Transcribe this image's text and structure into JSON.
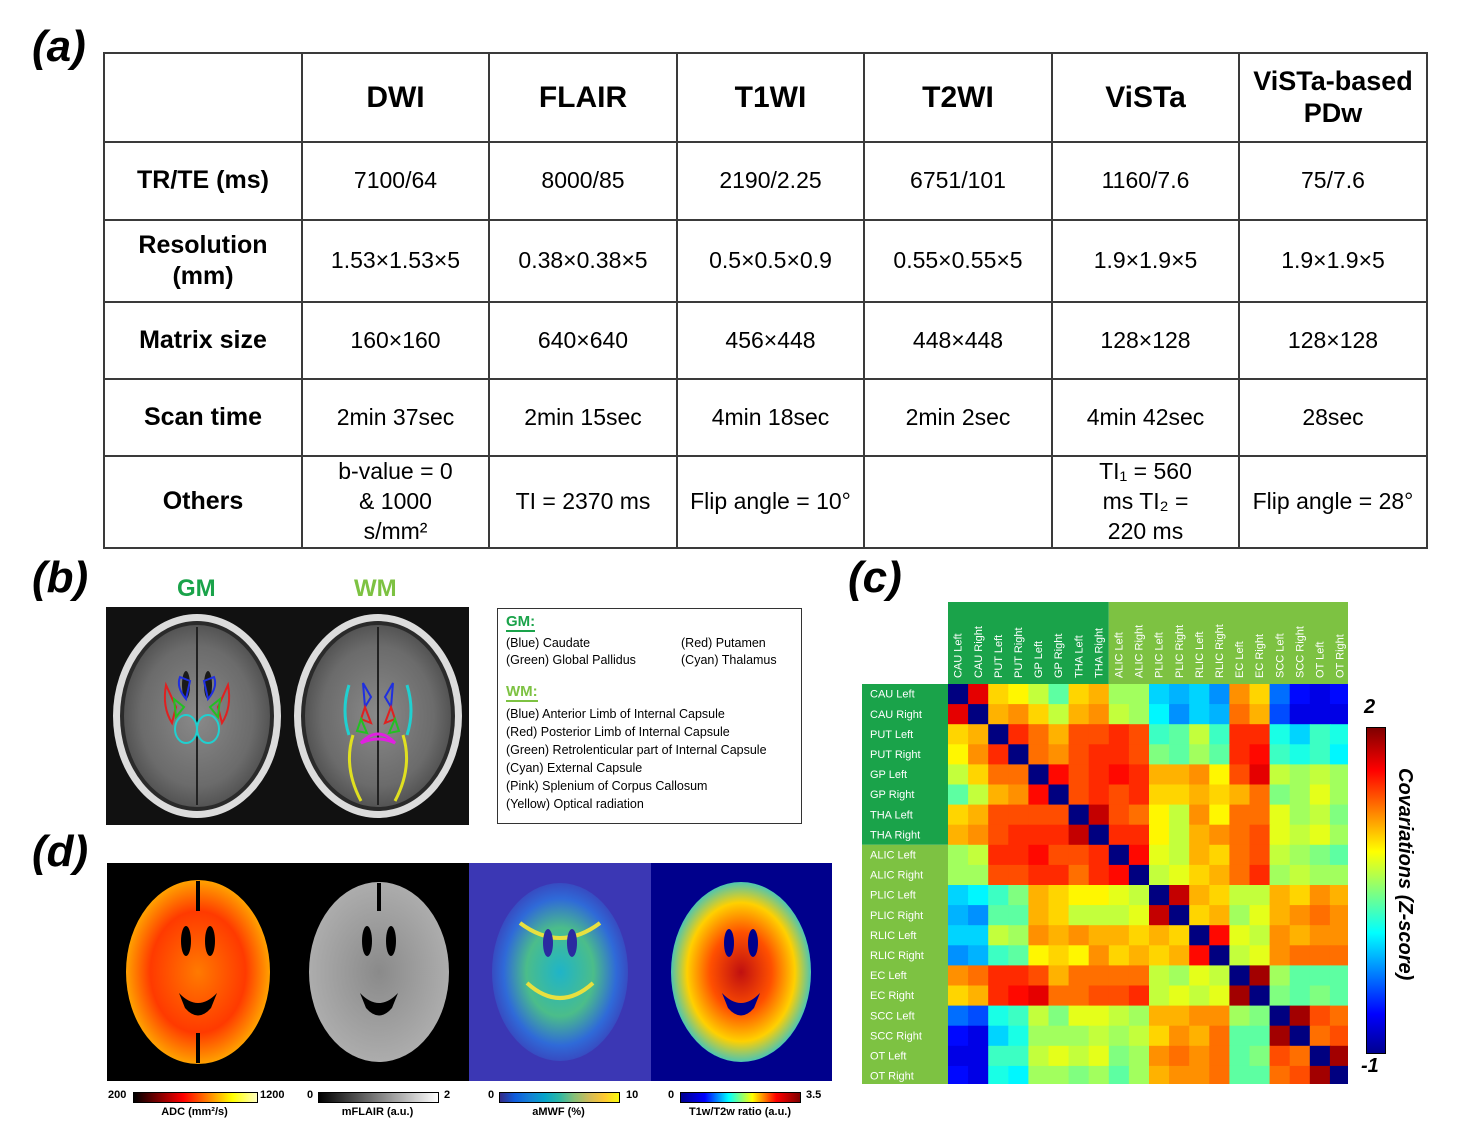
{
  "panel_labels": {
    "a": "(a)",
    "b": "(b)",
    "c": "(c)",
    "d": "(d)"
  },
  "table": {
    "columns": [
      "",
      "DWI",
      "FLAIR",
      "T1WI",
      "T2WI",
      "ViSTa",
      "ViSTa-based PDw"
    ],
    "rows": [
      {
        "label": "TR/TE (ms)",
        "cells": [
          "7100/64",
          "8000/85",
          "2190/2.25",
          "6751/101",
          "1160/7.6",
          "75/7.6"
        ]
      },
      {
        "label": "Resolution (mm)",
        "cells": [
          "1.53×1.53×5",
          "0.38×0.38×5",
          "0.5×0.5×0.9",
          "0.55×0.55×5",
          "1.9×1.9×5",
          "1.9×1.9×5"
        ]
      },
      {
        "label": "Matrix size",
        "cells": [
          "160×160",
          "640×640",
          "456×448",
          "448×448",
          "128×128",
          "128×128"
        ]
      },
      {
        "label": "Scan time",
        "cells": [
          "2min 37sec",
          "2min 15sec",
          "4min 18sec",
          "2min 2sec",
          "4min 42sec",
          "28sec"
        ]
      },
      {
        "label": "Others",
        "cells": [
          "b-value = 0 & 1000 s/mm²",
          "TI = 2370 ms",
          "Flip angle = 10°",
          "",
          "TI₁ = 560 ms TI₂ = 220 ms",
          "Flip angle = 28°"
        ]
      }
    ]
  },
  "panel_b": {
    "gm_label": "GM",
    "wm_label": "WM",
    "legend": {
      "gm_heading": "GM:",
      "gm_items": [
        "(Blue) Caudate",
        "(Red) Putamen",
        "(Green) Global Pallidus",
        "(Cyan) Thalamus"
      ],
      "wm_heading": "WM:",
      "wm_items": [
        "(Blue) Anterior Limb of Internal Capsule",
        "(Red) Posterior Limb of Internal Capsule",
        "(Green) Retrolenticular part of Internal Capsule",
        "(Cyan) External Capsule",
        "(Pink) Splenium of Corpus Callosum",
        "(Yellow) Optical radiation"
      ]
    }
  },
  "panel_d": {
    "maps": [
      {
        "title": "ADC (mm²/s)",
        "min": "200",
        "max": "1200",
        "colormap": "hot"
      },
      {
        "title": "mFLAIR (a.u.)",
        "min": "0",
        "max": "2",
        "colormap": "gray"
      },
      {
        "title": "aMWF (%)",
        "min": "0",
        "max": "10",
        "colormap": "parula"
      },
      {
        "title": "T1w/T2w ratio (a.u.)",
        "min": "0",
        "max": "3.5",
        "colormap": "jet"
      }
    ]
  },
  "chart_data": {
    "type": "heatmap",
    "labels": [
      "CAU Left",
      "CAU Right",
      "PUT Left",
      "PUT Right",
      "GP Left",
      "GP Right",
      "THA Left",
      "THA Right",
      "ALIC Left",
      "ALIC Right",
      "PLIC Left",
      "PLIC Right",
      "RLIC Left",
      "RLIC Right",
      "EC Left",
      "EC Right",
      "SCC Left",
      "SCC Right",
      "OT Left",
      "OT Right"
    ],
    "colorbar": {
      "title": "Covariations (Z-score)",
      "min": -1,
      "max": 2,
      "max_label": "2",
      "min_label": "-1"
    },
    "matrix": [
      [
        -1.0,
        1.7,
        1.0,
        0.9,
        0.7,
        0.4,
        1.0,
        1.1,
        0.6,
        0.6,
        0.0,
        -0.1,
        0.0,
        -0.2,
        1.2,
        1.0,
        -0.3,
        -0.6,
        -0.7,
        -0.6
      ],
      [
        1.7,
        -1.0,
        1.1,
        1.2,
        1.0,
        0.7,
        1.1,
        1.2,
        0.7,
        0.6,
        0.1,
        -0.2,
        0.0,
        -0.1,
        1.3,
        1.1,
        -0.4,
        -0.7,
        -0.7,
        -0.7
      ],
      [
        1.0,
        1.1,
        -1.0,
        1.5,
        1.3,
        1.1,
        1.4,
        1.4,
        1.5,
        1.4,
        0.3,
        0.4,
        0.7,
        0.3,
        1.5,
        1.5,
        0.2,
        0.0,
        0.3,
        0.2
      ],
      [
        0.9,
        1.2,
        1.5,
        -1.0,
        1.3,
        1.2,
        1.4,
        1.5,
        1.5,
        1.4,
        0.5,
        0.4,
        0.6,
        0.4,
        1.5,
        1.6,
        0.3,
        0.2,
        0.3,
        0.1
      ],
      [
        0.7,
        1.0,
        1.3,
        1.3,
        -1.0,
        1.6,
        1.4,
        1.5,
        1.6,
        1.5,
        1.1,
        1.1,
        1.2,
        0.9,
        1.4,
        1.7,
        0.7,
        0.6,
        0.7,
        0.6
      ],
      [
        0.4,
        0.7,
        1.1,
        1.2,
        1.6,
        -1.0,
        1.4,
        1.5,
        1.4,
        1.5,
        1.0,
        1.0,
        1.1,
        1.0,
        1.1,
        1.3,
        0.5,
        0.6,
        0.8,
        0.6
      ],
      [
        1.0,
        1.1,
        1.4,
        1.4,
        1.4,
        1.4,
        -1.0,
        1.8,
        1.4,
        1.3,
        0.9,
        0.7,
        1.2,
        0.9,
        1.3,
        1.3,
        0.8,
        0.6,
        0.7,
        0.5
      ],
      [
        1.1,
        1.2,
        1.4,
        1.5,
        1.5,
        1.5,
        1.8,
        -1.0,
        1.5,
        1.5,
        0.9,
        0.7,
        1.1,
        1.2,
        1.3,
        1.4,
        0.8,
        0.7,
        0.8,
        0.6
      ],
      [
        0.6,
        0.7,
        1.5,
        1.5,
        1.6,
        1.4,
        1.4,
        1.5,
        -1.0,
        1.6,
        0.8,
        0.7,
        1.1,
        1.0,
        1.3,
        1.4,
        0.7,
        0.6,
        0.5,
        0.4
      ],
      [
        0.6,
        0.6,
        1.4,
        1.4,
        1.5,
        1.5,
        1.3,
        1.5,
        1.6,
        -1.0,
        0.7,
        0.8,
        1.0,
        1.1,
        1.3,
        1.5,
        0.6,
        0.7,
        0.6,
        0.6
      ],
      [
        0.0,
        0.1,
        0.3,
        0.5,
        1.1,
        1.0,
        0.9,
        0.9,
        0.8,
        0.7,
        -1.0,
        1.8,
        1.1,
        1.0,
        0.7,
        0.7,
        1.1,
        1.0,
        1.2,
        1.1
      ],
      [
        -0.1,
        -0.2,
        0.4,
        0.4,
        1.1,
        1.0,
        0.7,
        0.7,
        0.7,
        0.8,
        1.8,
        -1.0,
        1.0,
        1.1,
        0.6,
        0.8,
        1.1,
        1.2,
        1.3,
        1.2
      ],
      [
        0.0,
        0.0,
        0.7,
        0.6,
        1.2,
        1.1,
        1.2,
        1.1,
        1.1,
        1.0,
        1.1,
        1.0,
        -1.0,
        1.6,
        0.8,
        0.7,
        1.2,
        1.1,
        1.2,
        1.2
      ],
      [
        -0.2,
        -0.1,
        0.3,
        0.4,
        0.9,
        1.0,
        0.9,
        1.2,
        1.0,
        1.1,
        1.0,
        1.1,
        1.6,
        -1.0,
        0.7,
        0.8,
        1.2,
        1.3,
        1.3,
        1.3
      ],
      [
        1.2,
        1.3,
        1.5,
        1.5,
        1.4,
        1.1,
        1.3,
        1.3,
        1.3,
        1.3,
        0.7,
        0.6,
        0.8,
        0.7,
        -1.0,
        1.9,
        0.6,
        0.4,
        0.4,
        0.4
      ],
      [
        1.0,
        1.1,
        1.5,
        1.6,
        1.7,
        1.3,
        1.3,
        1.4,
        1.4,
        1.5,
        0.7,
        0.8,
        0.7,
        0.8,
        1.9,
        -1.0,
        0.5,
        0.4,
        0.5,
        0.4
      ],
      [
        -0.3,
        -0.4,
        0.2,
        0.3,
        0.7,
        0.5,
        0.8,
        0.8,
        0.7,
        0.6,
        1.1,
        1.1,
        1.2,
        1.2,
        0.6,
        0.5,
        -1.0,
        1.9,
        1.4,
        1.3
      ],
      [
        -0.6,
        -0.7,
        0.0,
        0.2,
        0.6,
        0.6,
        0.6,
        0.7,
        0.6,
        0.7,
        1.0,
        1.2,
        1.1,
        1.3,
        0.4,
        0.4,
        1.9,
        -1.0,
        1.3,
        1.4
      ],
      [
        -0.7,
        -0.7,
        0.3,
        0.3,
        0.7,
        0.8,
        0.7,
        0.8,
        0.5,
        0.6,
        1.2,
        1.3,
        1.2,
        1.3,
        0.4,
        0.5,
        1.4,
        1.3,
        -1.0,
        1.9
      ],
      [
        -0.6,
        -0.7,
        0.2,
        0.1,
        0.6,
        0.6,
        0.5,
        0.6,
        0.4,
        0.6,
        1.1,
        1.2,
        1.2,
        1.3,
        0.4,
        0.4,
        1.3,
        1.4,
        1.9,
        -1.0
      ]
    ]
  },
  "colors": {
    "gm_green": "#1aa34a",
    "wm_green": "#7dc242",
    "table_border": "#3a3a3a"
  }
}
